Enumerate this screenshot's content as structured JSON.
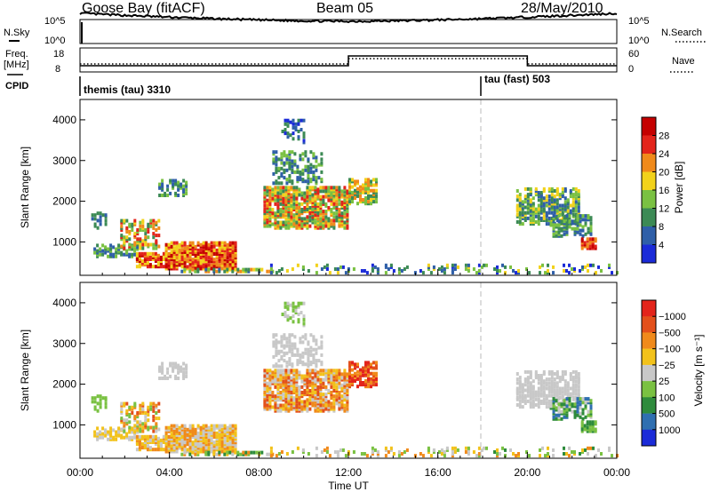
{
  "header": {
    "station": "Goose Bay (fitACF)",
    "beam": "Beam 05",
    "date": "28/May/2010"
  },
  "top_panels": {
    "nsky_label": "N.Sky",
    "nsky_ticks": [
      "10^5",
      "10^0"
    ],
    "nsearch_label": "N.Search",
    "nsearch_ticks": [
      "10^5",
      "10^0"
    ],
    "freq_label": "Freq.",
    "freq_unit": "[MHz]",
    "freq_ticks": [
      "18",
      "8"
    ],
    "nave_label": "Nave",
    "nave_ticks": [
      "60",
      "0"
    ],
    "cpid_label": "CPID",
    "cpid_segments": [
      {
        "label": "themis (tau) 3310",
        "start_hour": 0
      },
      {
        "label": "tau (fast) 503",
        "start_hour": 18
      }
    ]
  },
  "chart_data": [
    {
      "type": "heatmap",
      "title": "",
      "xlabel": "",
      "ylabel": "Slant Range [km]",
      "xlim": [
        0,
        24
      ],
      "ylim": [
        180,
        4500
      ],
      "yticks": [
        "1000",
        "2000",
        "3000",
        "4000"
      ],
      "colorbar": {
        "label": "Power [dB]",
        "ticks": [
          "4",
          "8",
          "12",
          "16",
          "20",
          "24",
          "28"
        ],
        "colors": [
          "#1b2bd8",
          "#2f5fa8",
          "#3c8a55",
          "#7ac142",
          "#f2d21b",
          "#f08a1b",
          "#e3241b",
          "#c40000"
        ]
      }
    },
    {
      "type": "heatmap",
      "title": "",
      "xlabel": "Time UT",
      "ylabel": "Slant Range [km]",
      "xlim": [
        0,
        24
      ],
      "ylim": [
        180,
        4500
      ],
      "yticks": [
        "1000",
        "2000",
        "3000",
        "4000"
      ],
      "xticks": [
        "00:00",
        "04:00",
        "08:00",
        "12:00",
        "16:00",
        "20:00",
        "00:00"
      ],
      "colorbar": {
        "label": "Velocity [m s⁻¹]",
        "ticks": [
          "1000",
          "500",
          "100",
          "25",
          "−25",
          "−100",
          "−500",
          "−1000"
        ],
        "colors": [
          "#1b2bd8",
          "#2f6fb0",
          "#2e8b3c",
          "#7ac142",
          "#c8c8c8",
          "#f2c21b",
          "#f08a1b",
          "#e3501b",
          "#e3241b"
        ]
      }
    }
  ]
}
